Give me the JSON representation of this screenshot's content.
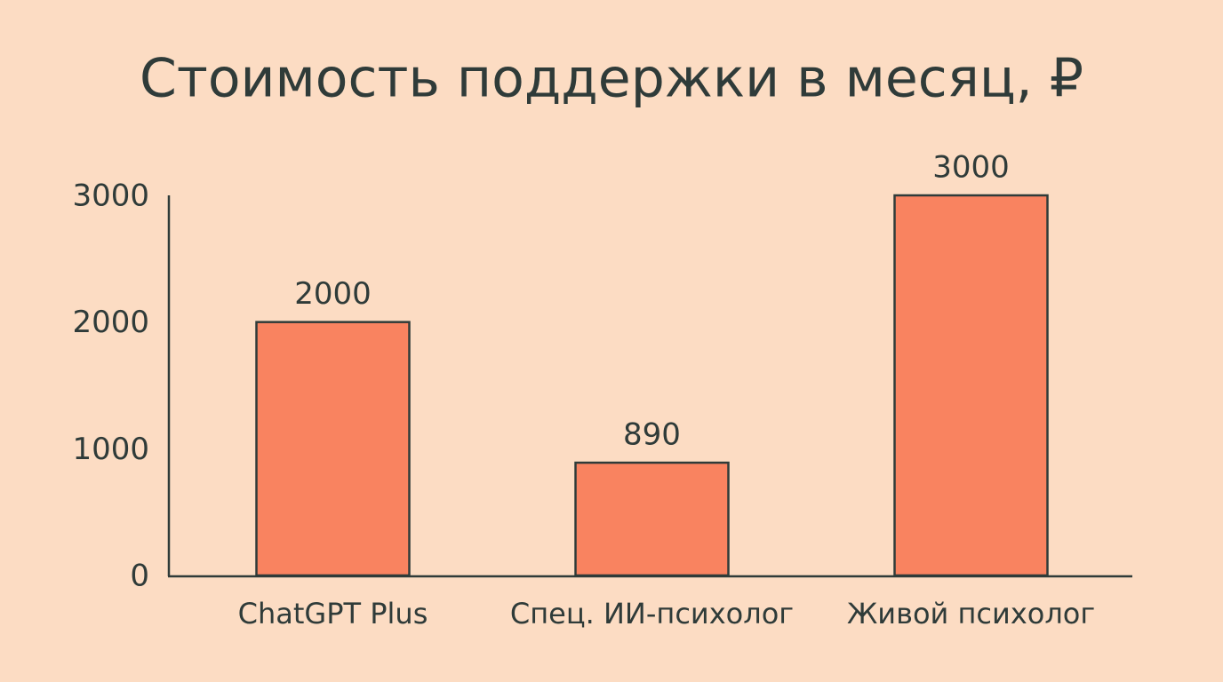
{
  "chart_data": {
    "type": "bar",
    "title": "Стоимость поддержки в месяц, ₽",
    "categories": [
      "ChatGPT Plus",
      "Спец. ИИ-психолог",
      "Живой психолог"
    ],
    "values": [
      2000,
      890,
      3000
    ],
    "color": "#f98360",
    "ylim": [
      0,
      3000
    ],
    "yticks": [
      0,
      1000,
      2000,
      3000
    ],
    "grid": false
  }
}
